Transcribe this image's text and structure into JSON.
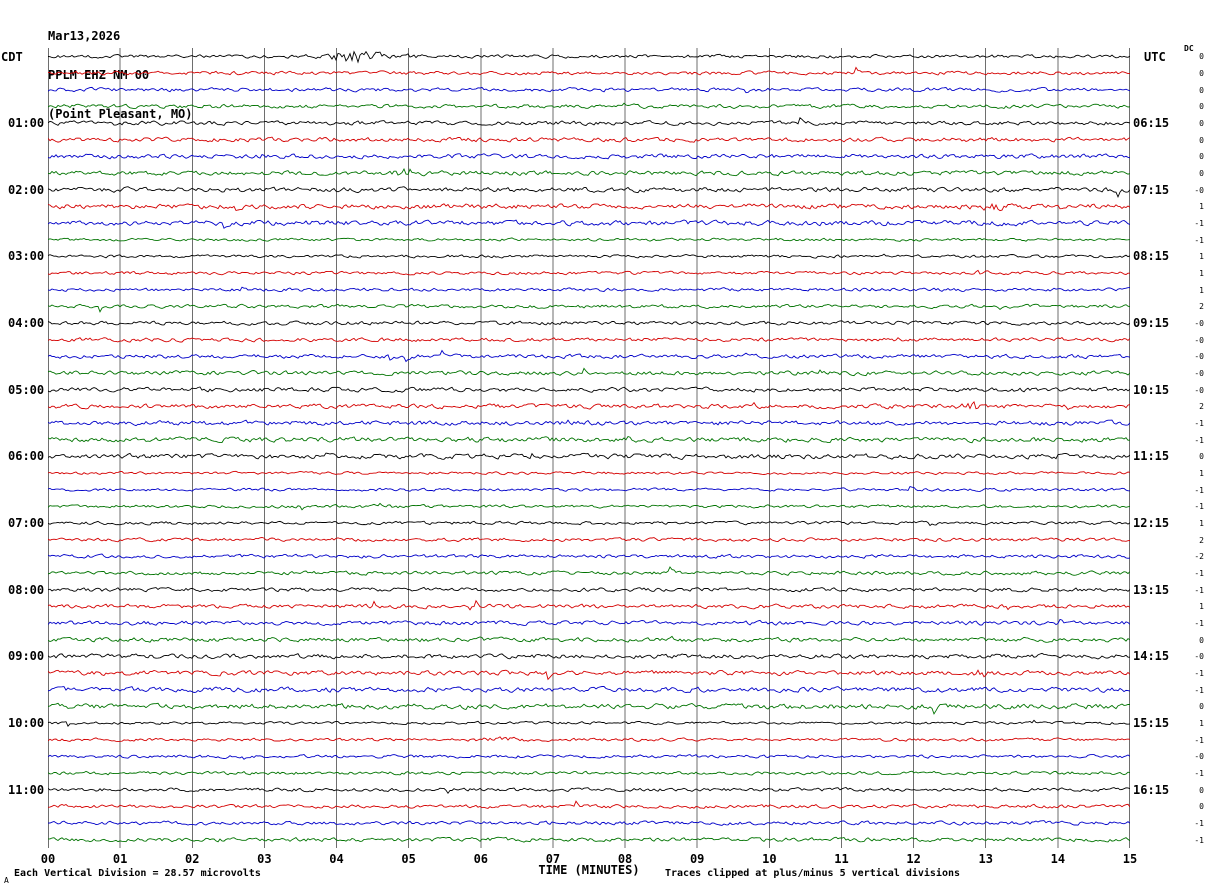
{
  "header": {
    "date": "Mar13,2026",
    "station": "PPLM EHZ NM 00",
    "location": "(Point Pleasant, MO)"
  },
  "axes": {
    "left_tz": "CDT",
    "right_tz": "UTC",
    "dc_label": "DC",
    "left_labels": [
      "01:00",
      "02:00",
      "03:00",
      "04:00",
      "05:00",
      "06:00",
      "07:00",
      "08:00",
      "09:00",
      "10:00",
      "11:00"
    ],
    "right_labels": [
      "06:15",
      "07:15",
      "08:15",
      "09:15",
      "10:15",
      "11:15",
      "12:15",
      "13:15",
      "14:15",
      "15:15",
      "16:15"
    ],
    "minute_labels": [
      "00",
      "01",
      "02",
      "03",
      "04",
      "05",
      "06",
      "07",
      "08",
      "09",
      "10",
      "11",
      "12",
      "13",
      "14",
      "15"
    ],
    "xlabel": "TIME (MINUTES)"
  },
  "footer": {
    "left": "Each Vertical Division =   28.57 microvolts",
    "right": "Traces clipped at plus/minus 5 vertical divisions",
    "corner": "A"
  },
  "chart_data": {
    "type": "line",
    "subtype": "helicorder-seismogram",
    "title": "PPLM EHZ NM 00 (Point Pleasant, MO) Mar13,2026",
    "rows": 48,
    "minutes_per_row": 15,
    "x_range": [
      0,
      15
    ],
    "row_duration_label": "each row = 15 minutes, 4 rows per hour",
    "start_time_cdt": "00:00",
    "end_time_cdt": "12:00",
    "grid": true,
    "grid_color": "#6e6e6e",
    "trace_colors": [
      "#000000",
      "#d40000",
      "#0000c8",
      "#007300"
    ],
    "color_cycle": [
      "black",
      "red",
      "blue",
      "green"
    ],
    "vertical_division_microvolts": 28.57,
    "clip_divisions": 5,
    "dc_values": [
      "0",
      "0",
      "0",
      "0",
      "0",
      "0",
      "0",
      "0",
      "-0",
      "1",
      "-1",
      "-1",
      "1",
      "1",
      "1",
      "2",
      "-0",
      "-0",
      "-0",
      "-0",
      "-0",
      "2",
      "-1",
      "-1",
      "0",
      "1",
      "-1",
      "-1",
      "1",
      "2",
      "-2",
      "-1",
      "-1",
      "1",
      "-1",
      "0",
      "-0",
      "-1",
      "-1",
      "0",
      "1",
      "-1",
      "-0",
      "-1",
      "0",
      "0",
      "-1",
      "-1"
    ],
    "events": [
      {
        "row": 0,
        "minute": 4.15,
        "amp": 3.5,
        "width": 0.2
      },
      {
        "row": 0,
        "minute": 4.6,
        "amp": 1.2,
        "width": 0.3
      },
      {
        "row": 7,
        "minute": 5.0,
        "amp": 1.6,
        "width": 0.12
      },
      {
        "row": 9,
        "minute": 13.0,
        "amp": 1.2,
        "width": 0.2
      },
      {
        "row": 13,
        "minute": 12.9,
        "amp": 1.8,
        "width": 0.08
      },
      {
        "row": 21,
        "minute": 12.85,
        "amp": 1.5,
        "width": 0.1
      },
      {
        "row": 27,
        "minute": 4.6,
        "amp": 1.3,
        "width": 0.15
      },
      {
        "row": 37,
        "minute": 12.95,
        "amp": 1.8,
        "width": 0.08
      },
      {
        "row": 41,
        "minute": 6.3,
        "amp": 1.2,
        "width": 0.2
      }
    ],
    "noise": "continuous background microseismic noise on every trace; traces clipped at plus/minus 5 vertical divisions"
  }
}
